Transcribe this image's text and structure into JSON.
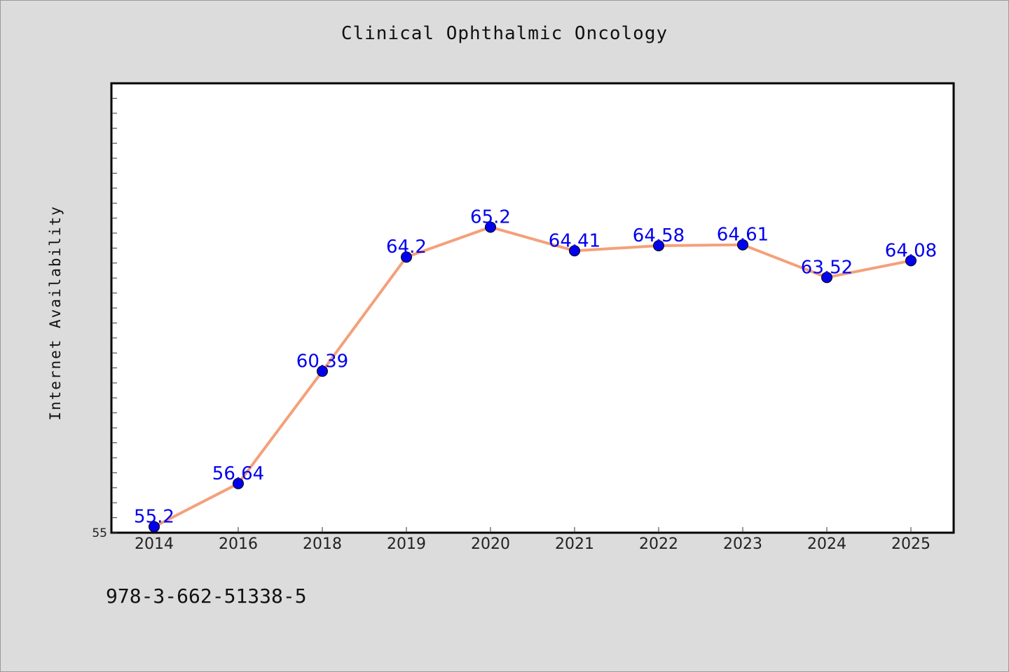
{
  "chart_data": {
    "type": "line",
    "title": "Clinical Ophthalmic Oncology",
    "ylabel": "Internet Availability",
    "xlabel": "",
    "categories": [
      "2014",
      "2016",
      "2018",
      "2019",
      "2020",
      "2021",
      "2022",
      "2023",
      "2024",
      "2025"
    ],
    "values": [
      55.2,
      56.64,
      60.39,
      64.2,
      65.2,
      64.41,
      64.58,
      64.61,
      63.52,
      64.08
    ],
    "value_labels": [
      "55.2",
      "56.64",
      "60.39",
      "64.2",
      "65.2",
      "64.41",
      "64.58",
      "64.61",
      "63.52",
      "64.08"
    ],
    "ylim": [
      55,
      70
    ],
    "y_tick_labels": [
      "55"
    ],
    "grid": false,
    "line_color": "#f4a07a",
    "marker_color": "#0000ee",
    "label_color": "#0000ee"
  },
  "footer": {
    "isbn": "978-3-662-51338-5"
  }
}
